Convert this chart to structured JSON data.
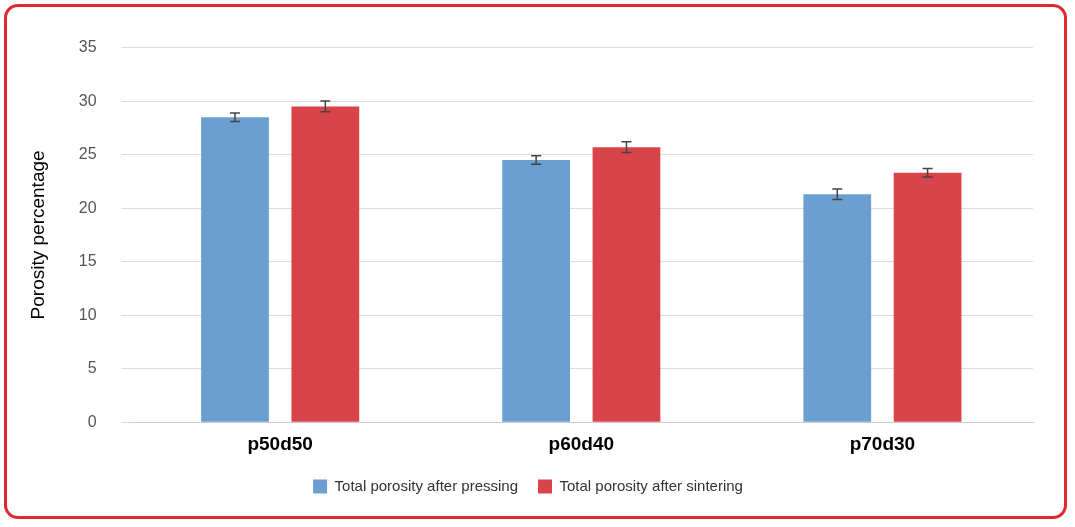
{
  "chart_data": {
    "type": "bar",
    "ylabel": "Porosity percentage",
    "categories": [
      "p50d50",
      "p60d40",
      "p70d30"
    ],
    "series": [
      {
        "name": "Total porosity after pressing",
        "color": "#6a9fcf",
        "values": [
          28.5,
          24.5,
          21.3
        ],
        "errors": [
          0.4,
          0.4,
          0.5
        ]
      },
      {
        "name": "Total porosity after sintering",
        "color": "#d9434a",
        "values": [
          29.5,
          25.7,
          23.3
        ],
        "errors": [
          0.5,
          0.5,
          0.4
        ]
      }
    ],
    "ylim": [
      0,
      35
    ],
    "yticks": [
      0,
      5,
      10,
      15,
      20,
      25,
      30,
      35
    ],
    "grid": "y",
    "legend": "bottom"
  }
}
